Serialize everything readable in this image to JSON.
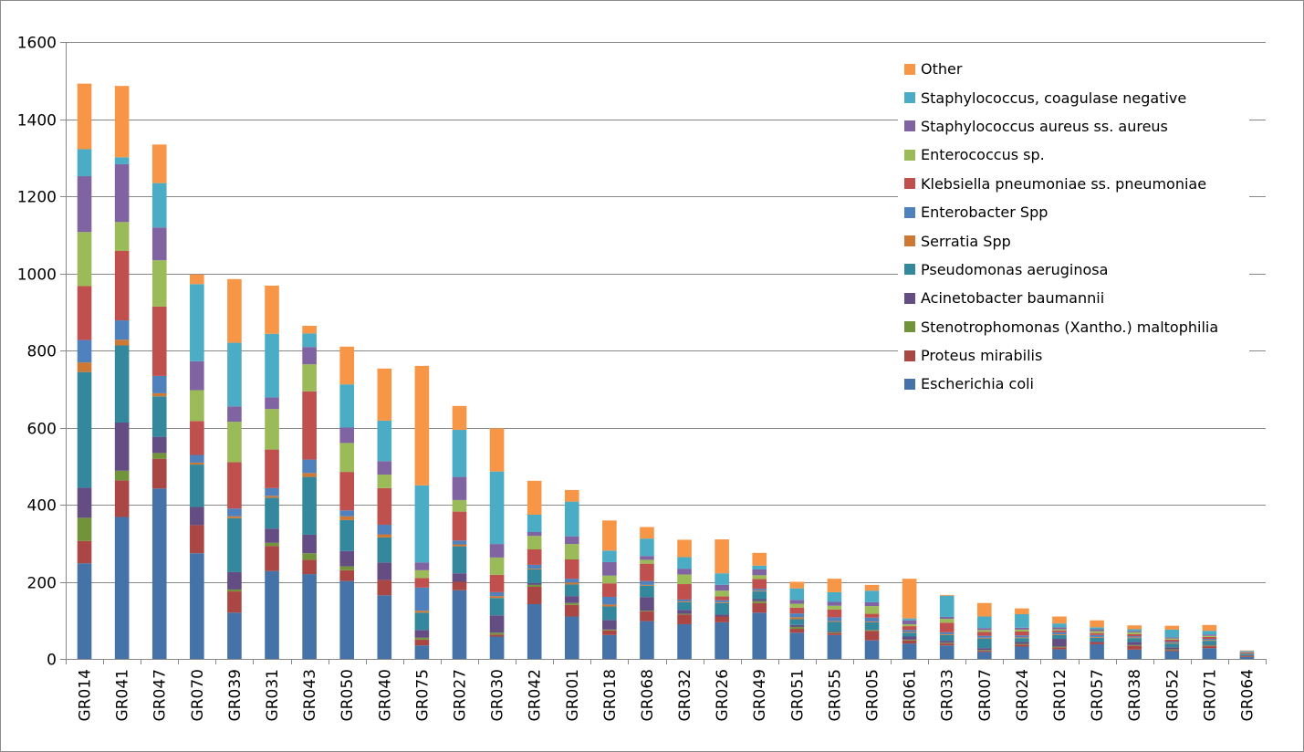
{
  "chart_data": {
    "type": "bar",
    "stacked": true,
    "title": "",
    "xlabel": "",
    "ylabel": "",
    "ylim": [
      0,
      1600
    ],
    "yticks": [
      0,
      200,
      400,
      600,
      800,
      1000,
      1200,
      1400,
      1600
    ],
    "ytick_labels": [
      "0",
      "200",
      "400",
      "600",
      "800",
      "1000",
      "1200",
      "1400",
      "1600"
    ],
    "grid": "horizontal",
    "legend_position": "right",
    "categories": [
      "GR014",
      "GR041",
      "GR047",
      "GR070",
      "GR039",
      "GR031",
      "GR043",
      "GR050",
      "GR040",
      "GR075",
      "GR027",
      "GR030",
      "GR042",
      "GR001",
      "GR018",
      "GR068",
      "GR032",
      "GR026",
      "GR049",
      "GR051",
      "GR055",
      "GR005",
      "GR061",
      "GR033",
      "GR007",
      "GR024",
      "GR012",
      "GR057",
      "GR038",
      "GR052",
      "GR071",
      "GR064"
    ],
    "series": [
      {
        "name": "Escherichia coli",
        "color": "#4572a7",
        "values": [
          248,
          368,
          442,
          274,
          120,
          228,
          220,
          202,
          165,
          35,
          178,
          58,
          142,
          110,
          62,
          98,
          90,
          95,
          120,
          68,
          62,
          48,
          40,
          35,
          18,
          32,
          25,
          38,
          24,
          20,
          28,
          5
        ]
      },
      {
        "name": "Proteus mirabilis",
        "color": "#aa4643",
        "values": [
          58,
          95,
          77,
          73,
          55,
          65,
          37,
          28,
          40,
          15,
          22,
          5,
          45,
          30,
          12,
          25,
          25,
          15,
          25,
          10,
          5,
          25,
          8,
          5,
          3,
          5,
          5,
          5,
          10,
          3,
          5,
          2
        ]
      },
      {
        "name": "Stenotrophomonas (Xantho.) maltophilia",
        "color": "#71943a",
        "values": [
          60,
          25,
          15,
          0,
          5,
          8,
          17,
          10,
          0,
          5,
          0,
          5,
          5,
          5,
          2,
          2,
          2,
          0,
          5,
          5,
          2,
          2,
          2,
          2,
          2,
          2,
          2,
          0,
          2,
          2,
          2,
          1
        ]
      },
      {
        "name": "Acinetobacter baumannii",
        "color": "#634d82",
        "values": [
          78,
          125,
          42,
          47,
          45,
          37,
          48,
          40,
          45,
          20,
          22,
          45,
          5,
          18,
          25,
          35,
          10,
          5,
          5,
          5,
          2,
          0,
          8,
          5,
          5,
          5,
          20,
          2,
          8,
          5,
          2,
          2
        ]
      },
      {
        "name": "Pseudomonas aeruginosa",
        "color": "#34889d",
        "values": [
          300,
          200,
          105,
          110,
          140,
          80,
          150,
          80,
          65,
          45,
          70,
          45,
          35,
          30,
          35,
          30,
          20,
          30,
          20,
          15,
          25,
          20,
          10,
          15,
          25,
          10,
          10,
          10,
          10,
          10,
          10,
          3
        ]
      },
      {
        "name": "Serratia Spp",
        "color": "#cd7834",
        "values": [
          25,
          15,
          8,
          5,
          5,
          5,
          10,
          10,
          8,
          5,
          5,
          5,
          2,
          5,
          5,
          2,
          2,
          2,
          2,
          5,
          2,
          2,
          2,
          2,
          2,
          2,
          2,
          2,
          2,
          2,
          2,
          1
        ]
      },
      {
        "name": "Enterobacter Spp",
        "color": "#4f81bd",
        "values": [
          58,
          50,
          45,
          20,
          20,
          20,
          35,
          15,
          25,
          60,
          10,
          10,
          10,
          10,
          20,
          10,
          5,
          5,
          5,
          10,
          10,
          10,
          5,
          5,
          5,
          5,
          5,
          5,
          3,
          3,
          3,
          1
        ]
      },
      {
        "name": "Klebsiella pneumoniae ss. pneumoniae",
        "color": "#c0504d",
        "values": [
          140,
          180,
          180,
          88,
          120,
          100,
          177,
          100,
          95,
          25,
          75,
          45,
          40,
          50,
          35,
          45,
          40,
          10,
          25,
          15,
          20,
          10,
          10,
          25,
          10,
          10,
          5,
          5,
          5,
          5,
          5,
          2
        ]
      },
      {
        "name": "Enterococcus sp.",
        "color": "#9bbb59",
        "values": [
          140,
          75,
          120,
          80,
          105,
          105,
          70,
          75,
          35,
          20,
          30,
          45,
          35,
          40,
          20,
          10,
          25,
          15,
          10,
          10,
          10,
          20,
          5,
          10,
          5,
          5,
          3,
          5,
          5,
          3,
          3,
          1
        ]
      },
      {
        "name": "Staphylococcus aureus ss. aureus",
        "color": "#8064a2",
        "values": [
          145,
          150,
          85,
          75,
          40,
          30,
          45,
          40,
          35,
          20,
          60,
          35,
          10,
          20,
          35,
          10,
          15,
          15,
          15,
          10,
          10,
          10,
          10,
          5,
          5,
          5,
          5,
          5,
          3,
          3,
          3,
          1
        ]
      },
      {
        "name": "Staphylococcus, coagulase negative",
        "color": "#4bacc6",
        "values": [
          70,
          18,
          115,
          200,
          165,
          165,
          35,
          112,
          105,
          200,
          122,
          188,
          45,
          90,
          30,
          45,
          30,
          30,
          10,
          30,
          25,
          30,
          5,
          55,
          30,
          35,
          10,
          5,
          5,
          20,
          10,
          2
        ]
      },
      {
        "name": "Other",
        "color": "#f79646",
        "values": [
          170,
          185,
          100,
          25,
          165,
          125,
          20,
          98,
          135,
          310,
          62,
          112,
          88,
          30,
          78,
          30,
          45,
          88,
          33,
          17,
          35,
          15,
          103,
          2,
          35,
          15,
          18,
          18,
          10,
          10,
          15,
          1
        ]
      }
    ]
  }
}
